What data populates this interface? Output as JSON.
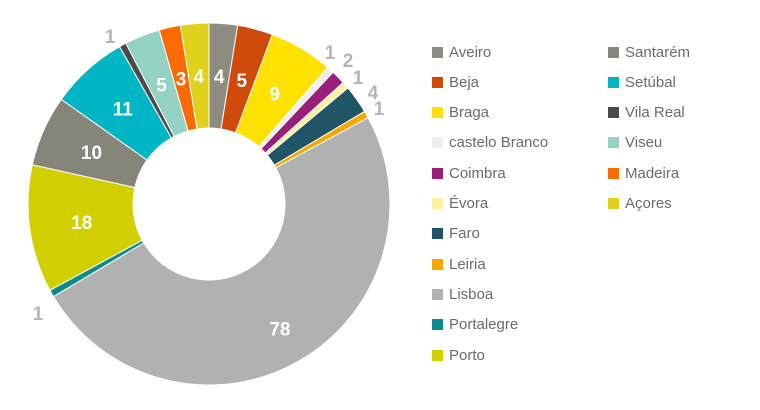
{
  "chart_data": {
    "type": "pie",
    "variant": "donut",
    "categories": [
      "Aveiro",
      "Beja",
      "Braga",
      "castelo Branco",
      "Coimbra",
      "Évora",
      "Faro",
      "Leiria",
      "Lisboa",
      "Portalegre",
      "Porto",
      "Santarém",
      "Setúbal",
      "Vila Real",
      "Viseu",
      "Madeira",
      "Açores"
    ],
    "values": [
      4,
      5,
      9,
      1,
      2,
      1,
      4,
      1,
      78,
      1,
      18,
      10,
      11,
      1,
      5,
      3,
      4
    ],
    "colors": [
      "#8c8c80",
      "#d04a0c",
      "#fde100",
      "#eeeeee",
      "#9a1f7a",
      "#fdf0a0",
      "#1f5565",
      "#f7a800",
      "#b1b1b1",
      "#0f8a8a",
      "#d2cf00",
      "#85857a",
      "#00b5c4",
      "#4a4a4a",
      "#94d2c4",
      "#fb6a00",
      "#e0d21a"
    ],
    "legend": {
      "position": "right",
      "columns": [
        [
          "Aveiro",
          "Beja",
          "Braga",
          "castelo Branco",
          "Coimbra",
          "Évora",
          "Faro",
          "Leiria",
          "Lisboa",
          "Portalegre",
          "Porto"
        ],
        [
          "Santarém",
          "Setúbal",
          "Vila Real",
          "Viseu",
          "Madeira",
          "Açores"
        ]
      ]
    }
  }
}
